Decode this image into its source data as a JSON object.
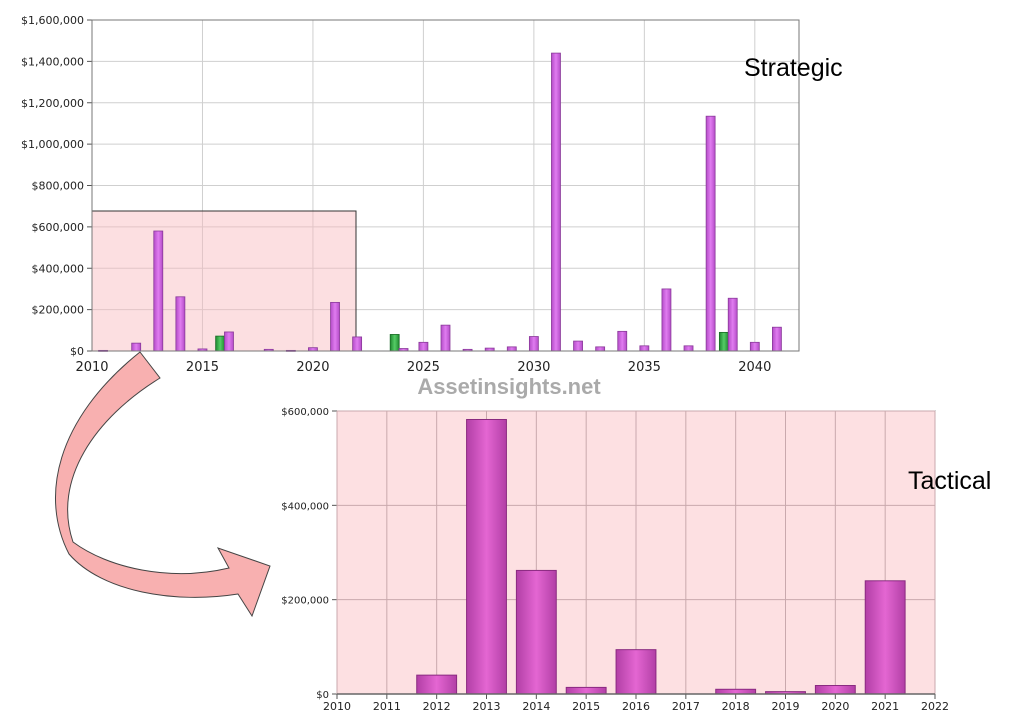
{
  "watermark": "Assetinsights.net",
  "chart_data": [
    {
      "type": "bar",
      "label": "Strategic",
      "xlim": [
        2010,
        2042
      ],
      "ylim": [
        0,
        1600000
      ],
      "x_ticks": [
        "2010",
        "2015",
        "2020",
        "2025",
        "2030",
        "2035",
        "2040"
      ],
      "y_ticks": [
        "$0",
        "$200,000",
        "$400,000",
        "$600,000",
        "$800,000",
        "$1,000,000",
        "$1,200,000",
        "$1,400,000",
        "$1,600,000"
      ],
      "grid": true,
      "colors": {
        "default": "#cc55dd",
        "alt": "#33aa44"
      },
      "bars": [
        {
          "x": 2010.5,
          "y": 3000,
          "c": "default"
        },
        {
          "x": 2012,
          "y": 38000,
          "c": "default"
        },
        {
          "x": 2013,
          "y": 580000,
          "c": "default"
        },
        {
          "x": 2014,
          "y": 262000,
          "c": "default"
        },
        {
          "x": 2015,
          "y": 10000,
          "c": "default"
        },
        {
          "x": 2015.8,
          "y": 72000,
          "c": "alt"
        },
        {
          "x": 2016.2,
          "y": 92000,
          "c": "default"
        },
        {
          "x": 2018,
          "y": 8000,
          "c": "default"
        },
        {
          "x": 2019,
          "y": 3000,
          "c": "default"
        },
        {
          "x": 2020,
          "y": 16000,
          "c": "default"
        },
        {
          "x": 2021,
          "y": 235000,
          "c": "default"
        },
        {
          "x": 2022,
          "y": 68000,
          "c": "default"
        },
        {
          "x": 2023.7,
          "y": 80000,
          "c": "alt"
        },
        {
          "x": 2024.1,
          "y": 12000,
          "c": "default"
        },
        {
          "x": 2025,
          "y": 42000,
          "c": "default"
        },
        {
          "x": 2026,
          "y": 125000,
          "c": "default"
        },
        {
          "x": 2027,
          "y": 8000,
          "c": "default"
        },
        {
          "x": 2028,
          "y": 14000,
          "c": "default"
        },
        {
          "x": 2029,
          "y": 20000,
          "c": "default"
        },
        {
          "x": 2030,
          "y": 70000,
          "c": "default"
        },
        {
          "x": 2031,
          "y": 1440000,
          "c": "default"
        },
        {
          "x": 2032,
          "y": 48000,
          "c": "default"
        },
        {
          "x": 2033,
          "y": 20000,
          "c": "default"
        },
        {
          "x": 2034,
          "y": 95000,
          "c": "default"
        },
        {
          "x": 2035,
          "y": 25000,
          "c": "default"
        },
        {
          "x": 2036,
          "y": 300000,
          "c": "default"
        },
        {
          "x": 2037,
          "y": 25000,
          "c": "default"
        },
        {
          "x": 2038,
          "y": 1135000,
          "c": "default"
        },
        {
          "x": 2038.6,
          "y": 90000,
          "c": "alt"
        },
        {
          "x": 2039,
          "y": 255000,
          "c": "default"
        },
        {
          "x": 2040,
          "y": 42000,
          "c": "default"
        },
        {
          "x": 2041,
          "y": 115000,
          "c": "default"
        }
      ]
    },
    {
      "type": "bar",
      "label": "Tactical",
      "xlim": [
        2010,
        2022
      ],
      "ylim": [
        0,
        600000
      ],
      "categories": [
        "2010",
        "2011",
        "2012",
        "2013",
        "2014",
        "2015",
        "2016",
        "2017",
        "2018",
        "2019",
        "2020",
        "2021",
        "2022"
      ],
      "values": [
        0,
        0,
        40000,
        582000,
        262000,
        14000,
        94000,
        0,
        10000,
        5000,
        18000,
        240000,
        0
      ],
      "y_ticks": [
        "$0",
        "$200,000",
        "$400,000",
        "$600,000"
      ],
      "grid": true,
      "colors": {
        "bar": "#cc44bb",
        "background": "#fde0e2"
      }
    }
  ]
}
